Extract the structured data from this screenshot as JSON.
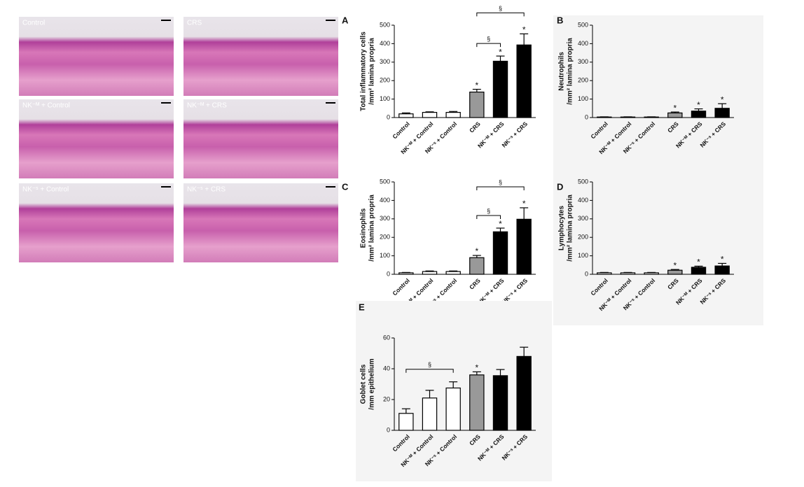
{
  "image_panels": [
    "Control",
    "CRS",
    "NK⁻ᴹ + Control",
    "NK⁻ᴹ + CRS",
    "NK⁻ˢ + Control",
    "NK⁻ˢ + CRS"
  ],
  "chart_data": [
    {
      "type": "bar",
      "panel_label": "A",
      "ylabel": [
        "Total inflammatory cells",
        "/mm² lamina propria"
      ],
      "categories": [
        "Control",
        "NK⁻ᴹ + Control",
        "NK⁻ˢ + Control",
        "CRS",
        "NK⁻ᴹ + CRS",
        "NK⁻ˢ + CRS"
      ],
      "values": [
        20,
        28,
        28,
        138,
        305,
        393
      ],
      "errors": [
        5,
        3,
        5,
        15,
        28,
        60
      ],
      "colors": [
        "#ffffff",
        "#ffffff",
        "#ffffff",
        "#999999",
        "#000000",
        "#000000"
      ],
      "star_labels": [
        null,
        null,
        null,
        "*",
        "*",
        "*"
      ],
      "brackets": [
        {
          "from": 3,
          "to": 4,
          "label": "§"
        },
        {
          "from": 3,
          "to": 5,
          "label": "§"
        }
      ],
      "ylim": [
        0,
        500
      ],
      "yticks": [
        0,
        100,
        200,
        300,
        400,
        500
      ],
      "background": "#ffffff"
    },
    {
      "type": "bar",
      "panel_label": "B",
      "ylabel": [
        "Neutrophils",
        "/mm² lamina propria"
      ],
      "categories": [
        "Control",
        "NK⁻ᴹ + Control",
        "NK⁻ˢ + Control",
        "CRS",
        "NK⁻ᴹ + CRS",
        "NK⁻ˢ + CRS"
      ],
      "values": [
        3,
        3,
        3,
        25,
        35,
        50
      ],
      "errors": [
        1,
        1,
        1,
        5,
        12,
        25
      ],
      "colors": [
        "#ffffff",
        "#ffffff",
        "#ffffff",
        "#999999",
        "#000000",
        "#000000"
      ],
      "star_labels": [
        null,
        null,
        null,
        "*",
        "*",
        "*"
      ],
      "brackets": [],
      "ylim": [
        0,
        500
      ],
      "yticks": [
        0,
        100,
        200,
        300,
        400,
        500
      ],
      "background": "#f4f4f4"
    },
    {
      "type": "bar",
      "panel_label": "C",
      "ylabel": [
        "Eosinophils",
        "/mm² lamina propria"
      ],
      "categories": [
        "Control",
        "NK⁻ᴹ + Control",
        "NK⁻ˢ + Control",
        "CRS",
        "NK⁻ᴹ + CRS",
        "NK⁻ˢ + CRS"
      ],
      "values": [
        8,
        15,
        15,
        90,
        230,
        298
      ],
      "errors": [
        2,
        3,
        3,
        12,
        20,
        62
      ],
      "colors": [
        "#ffffff",
        "#ffffff",
        "#ffffff",
        "#999999",
        "#000000",
        "#000000"
      ],
      "star_labels": [
        null,
        null,
        null,
        "*",
        "*",
        "*"
      ],
      "brackets": [
        {
          "from": 3,
          "to": 4,
          "label": "§"
        },
        {
          "from": 3,
          "to": 5,
          "label": "§"
        }
      ],
      "ylim": [
        0,
        500
      ],
      "yticks": [
        0,
        100,
        200,
        300,
        400,
        500
      ],
      "background": "#ffffff"
    },
    {
      "type": "bar",
      "panel_label": "D",
      "ylabel": [
        "Lymphocytes",
        "/mm² lamina propria"
      ],
      "categories": [
        "Control",
        "NK⁻ᴹ + Control",
        "NK⁻ˢ + Control",
        "CRS",
        "NK⁻ᴹ + CRS",
        "NK⁻ˢ + CRS"
      ],
      "values": [
        8,
        8,
        8,
        22,
        38,
        45
      ],
      "errors": [
        2,
        2,
        2,
        4,
        6,
        14
      ],
      "colors": [
        "#ffffff",
        "#ffffff",
        "#ffffff",
        "#999999",
        "#000000",
        "#000000"
      ],
      "star_labels": [
        null,
        null,
        null,
        "*",
        "*",
        "*"
      ],
      "brackets": [],
      "ylim": [
        0,
        500
      ],
      "yticks": [
        0,
        100,
        200,
        300,
        400,
        500
      ],
      "background": "#f4f4f4"
    },
    {
      "type": "bar",
      "panel_label": "E",
      "ylabel": [
        "Goblet cells",
        "/mm epithelium"
      ],
      "categories": [
        "Control",
        "NK⁻ᴹ + Control",
        "NK⁻ˢ + Control",
        "CRS",
        "NK⁻ᴹ + CRS",
        "NK⁻ˢ + CRS"
      ],
      "values": [
        11,
        21,
        27.5,
        36,
        35.5,
        48
      ],
      "errors": [
        3,
        5,
        4,
        2,
        4,
        6
      ],
      "colors": [
        "#ffffff",
        "#ffffff",
        "#ffffff",
        "#999999",
        "#000000",
        "#000000"
      ],
      "star_labels": [
        null,
        null,
        null,
        "*",
        null,
        null
      ],
      "brackets": [
        {
          "from": 0,
          "to": 2,
          "label": "§"
        }
      ],
      "ylim": [
        0,
        60
      ],
      "yticks": [
        0,
        20,
        40,
        60
      ],
      "background": "#f4f4f4"
    }
  ]
}
